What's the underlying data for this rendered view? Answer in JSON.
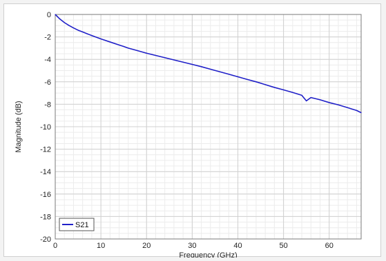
{
  "chart_data": {
    "type": "line",
    "title": "",
    "xlabel": "Frequency (GHz)",
    "ylabel": "Magnitude (dB)",
    "xlim": [
      0,
      67
    ],
    "ylim": [
      -20,
      0
    ],
    "x_major_ticks": [
      0,
      10,
      20,
      30,
      40,
      50,
      60
    ],
    "y_major_ticks": [
      0,
      -2,
      -4,
      -6,
      -8,
      -10,
      -12,
      -14,
      -16,
      -18,
      -20
    ],
    "x_minor_step": 2,
    "y_minor_step": 0.5,
    "grid": true,
    "legend_position": "bottom-left",
    "series": [
      {
        "name": "S21",
        "color": "#1f1fc8",
        "x": [
          0,
          1,
          2,
          3,
          4,
          5,
          6,
          8,
          10,
          12,
          14,
          15,
          16,
          18,
          20,
          22,
          24,
          26,
          28,
          30,
          32,
          34,
          36,
          38,
          40,
          42,
          44,
          46,
          48,
          50,
          52,
          54,
          55,
          56,
          58,
          60,
          62,
          64,
          66,
          67
        ],
        "y": [
          0,
          -0.4,
          -0.72,
          -0.98,
          -1.2,
          -1.4,
          -1.56,
          -1.88,
          -2.18,
          -2.45,
          -2.72,
          -2.85,
          -3.0,
          -3.22,
          -3.45,
          -3.65,
          -3.85,
          -4.05,
          -4.25,
          -4.45,
          -4.65,
          -4.88,
          -5.1,
          -5.32,
          -5.55,
          -5.78,
          -6.0,
          -6.25,
          -6.5,
          -6.72,
          -6.95,
          -7.2,
          -7.7,
          -7.4,
          -7.6,
          -7.85,
          -8.05,
          -8.3,
          -8.55,
          -8.75
        ]
      }
    ]
  }
}
